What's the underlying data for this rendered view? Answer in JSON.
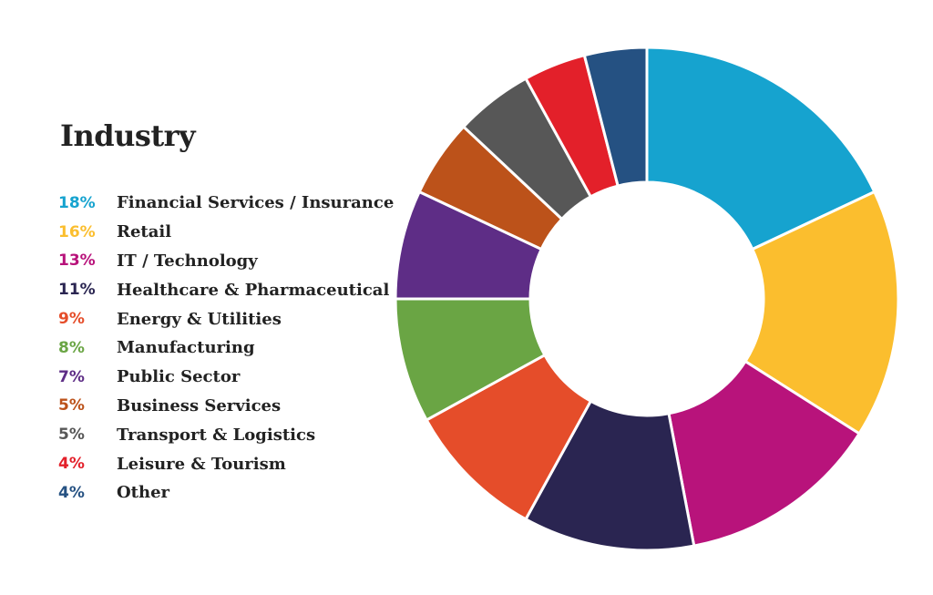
{
  "chart_data": {
    "type": "pie",
    "title": "Industry",
    "donut": true,
    "legend_position": "left",
    "categories": [
      "Financial Services / Insurance",
      "Retail",
      "IT / Technology",
      "Healthcare & Pharmaceutical",
      "Energy & Utilities",
      "Manufacturing",
      "Public Sector",
      "Business Services",
      "Transport & Logistics",
      "Leisure & Tourism",
      "Other"
    ],
    "values": [
      18,
      16,
      13,
      11,
      9,
      8,
      7,
      5,
      5,
      4,
      4
    ],
    "value_labels": [
      "18%",
      "16%",
      "13%",
      "11%",
      "9%",
      "8%",
      "7%",
      "5%",
      "5%",
      "4%",
      "4%"
    ],
    "colors": [
      "#16a3cf",
      "#fbbe2e",
      "#b8137b",
      "#2a2551",
      "#e54d2a",
      "#6aa544",
      "#5e2d86",
      "#bc521a",
      "#575757",
      "#e3202a",
      "#255182"
    ]
  }
}
